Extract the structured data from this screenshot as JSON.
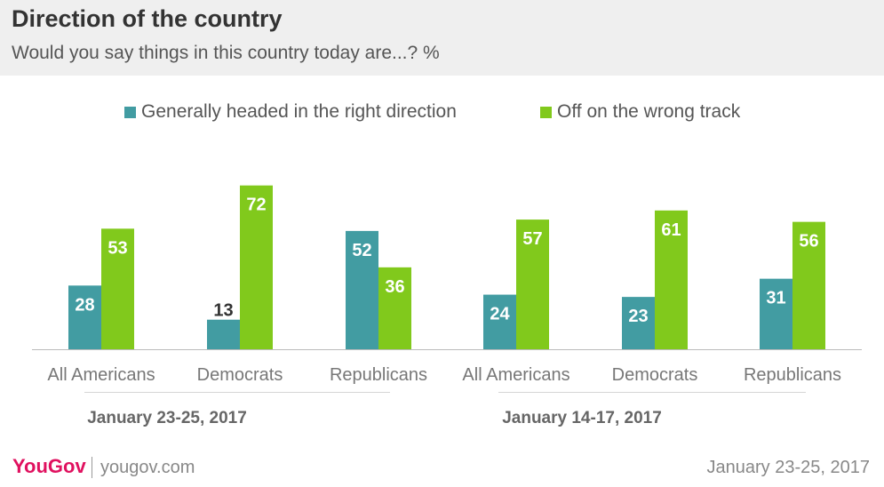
{
  "header": {
    "title": "Direction of the country",
    "subtitle": "Would you say things in this country today are...? %"
  },
  "legend": [
    {
      "label": "Generally headed in the right direction",
      "color": "#429ca2"
    },
    {
      "label": "Off on the wrong track",
      "color": "#81c91c"
    }
  ],
  "chart_data": {
    "type": "bar",
    "title": "Direction of the country",
    "subtitle": "Would you say things in this country today are...? %",
    "categories": [
      "All Americans",
      "Democrats",
      "Republicans",
      "All Americans",
      "Democrats",
      "Republicans"
    ],
    "groups": [
      {
        "label": "January 23-25, 2017",
        "categories": [
          0,
          1,
          2
        ]
      },
      {
        "label": "January 14-17, 2017",
        "categories": [
          3,
          4,
          5
        ]
      }
    ],
    "series": [
      {
        "name": "Generally headed in the right direction",
        "color": "#429ca2",
        "values": [
          28,
          13,
          52,
          24,
          23,
          31
        ]
      },
      {
        "name": "Off on the wrong track",
        "color": "#81c91c",
        "values": [
          53,
          72,
          36,
          57,
          61,
          56
        ]
      }
    ],
    "ylim": [
      0,
      72
    ],
    "grid": false,
    "legend_position": "top"
  },
  "footer": {
    "logo": "YouGov",
    "site": "yougov.com",
    "date": "January 23-25, 2017"
  }
}
